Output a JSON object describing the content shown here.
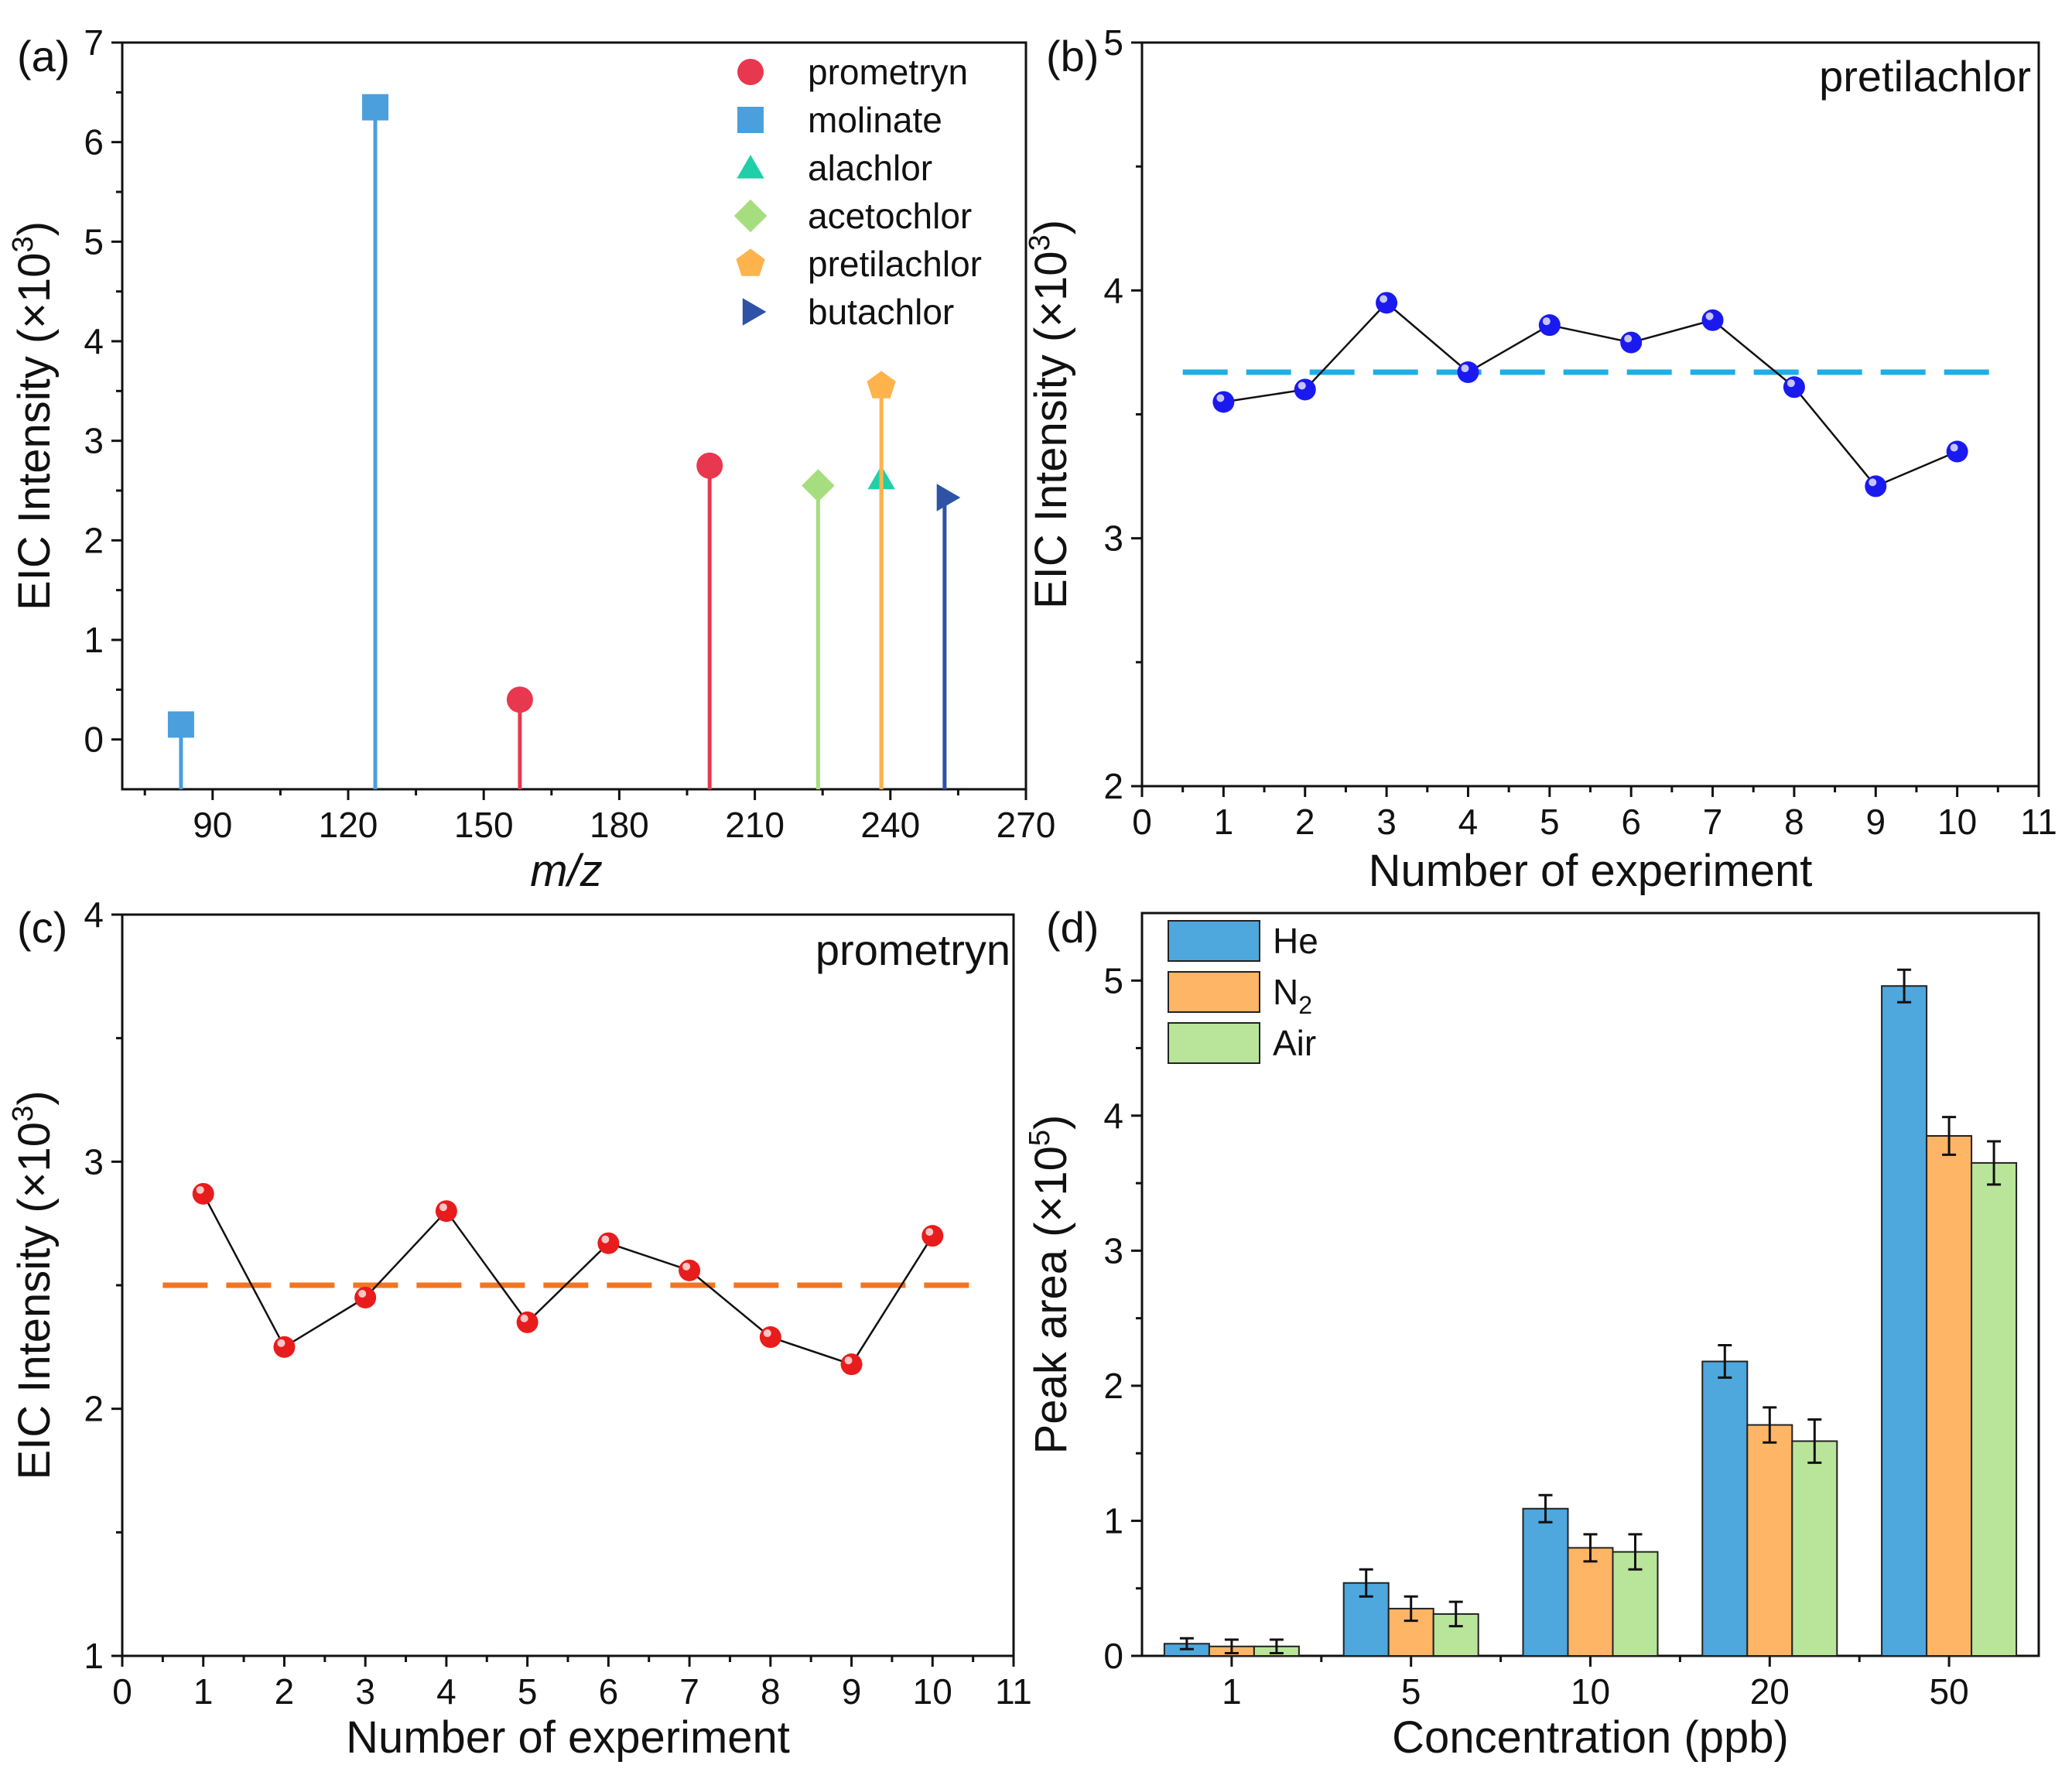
{
  "chart_data": [
    {
      "id": "a",
      "type": "stem",
      "panel_label": "(a)",
      "xlabel": "m/z",
      "ylabel": "EIC Intensity (×10³)",
      "ylabel_base": "EIC Intensity (×10",
      "ylabel_exp": "3",
      "xlim": [
        70,
        270
      ],
      "ylim": [
        -0.5,
        7
      ],
      "xticks": [
        90,
        120,
        150,
        180,
        210,
        240,
        270
      ],
      "yticks": [
        0,
        1,
        2,
        3,
        4,
        5,
        6,
        7
      ],
      "series": [
        {
          "name": "prometryn",
          "marker": "circle",
          "color": "#e8384f",
          "points": [
            {
              "x": 158,
              "y": 0.4
            },
            {
              "x": 200,
              "y": 2.75
            }
          ]
        },
        {
          "name": "molinate",
          "marker": "square",
          "color": "#4a9fdc",
          "points": [
            {
              "x": 83,
              "y": 0.15
            },
            {
              "x": 126,
              "y": 6.35
            }
          ]
        },
        {
          "name": "alachlor",
          "marker": "triangle",
          "color": "#1fcfa8",
          "points": [
            {
              "x": 238,
              "y": 2.62
            }
          ]
        },
        {
          "name": "acetochlor",
          "marker": "diamond",
          "color": "#a6de7f",
          "points": [
            {
              "x": 224,
              "y": 2.55
            }
          ]
        },
        {
          "name": "pretilachlor",
          "marker": "pentagon",
          "color": "#ffb34c",
          "points": [
            {
              "x": 238,
              "y": 3.55
            }
          ]
        },
        {
          "name": "butachlor",
          "marker": "triangle-right",
          "color": "#2d53a6",
          "points": [
            {
              "x": 252,
              "y": 2.43
            }
          ]
        }
      ]
    },
    {
      "id": "b",
      "type": "line",
      "panel_label": "(b)",
      "inner_label": "pretilachlor",
      "xlabel": "Number of experiment",
      "ylabel": "EIC Intensity (×10³)",
      "ylabel_base": "EIC Intensity (×10",
      "ylabel_exp": "3",
      "xlim": [
        0,
        11
      ],
      "ylim": [
        2,
        5
      ],
      "xticks": [
        0,
        1,
        2,
        3,
        4,
        5,
        6,
        7,
        8,
        9,
        10,
        11
      ],
      "yticks": [
        2,
        3,
        4,
        5
      ],
      "x": [
        1,
        2,
        3,
        4,
        5,
        6,
        7,
        8,
        9,
        10
      ],
      "y": [
        3.55,
        3.6,
        3.95,
        3.67,
        3.86,
        3.79,
        3.88,
        3.61,
        3.21,
        3.35
      ],
      "mean_line": 3.67,
      "marker_color": "#1a1af0",
      "mean_color": "#1eaee6"
    },
    {
      "id": "c",
      "type": "line",
      "panel_label": "(c)",
      "inner_label": "prometryn",
      "xlabel": "Number of experiment",
      "ylabel": "EIC Intensity (×10³)",
      "ylabel_base": "EIC Intensity (×10",
      "ylabel_exp": "3",
      "xlim": [
        0,
        11
      ],
      "ylim": [
        1,
        4
      ],
      "xticks": [
        0,
        1,
        2,
        3,
        4,
        5,
        6,
        7,
        8,
        9,
        10,
        11
      ],
      "yticks": [
        1,
        2,
        3,
        4
      ],
      "x": [
        1,
        2,
        3,
        4,
        5,
        6,
        7,
        8,
        9,
        10
      ],
      "y": [
        2.87,
        2.25,
        2.45,
        2.8,
        2.35,
        2.67,
        2.56,
        2.29,
        2.18,
        2.7
      ],
      "mean_line": 2.5,
      "marker_color": "#e81c1c",
      "mean_color": "#f27522"
    },
    {
      "id": "d",
      "type": "bar",
      "panel_label": "(d)",
      "xlabel": "Concentration (ppb)",
      "ylabel": "Peak area (×10⁵)",
      "ylabel_base": "Peak area (×10",
      "ylabel_exp": "5",
      "categories": [
        "1",
        "5",
        "10",
        "20",
        "50"
      ],
      "ylim": [
        0,
        5.5
      ],
      "yticks": [
        0,
        1,
        2,
        3,
        4,
        5
      ],
      "series": [
        {
          "name": "He",
          "name_base": "He",
          "name_sub": "",
          "color": "#4ea7dd",
          "values": [
            0.09,
            0.54,
            1.09,
            2.18,
            4.96
          ],
          "errors": [
            0.04,
            0.1,
            0.1,
            0.12,
            0.12
          ]
        },
        {
          "name": "N₂",
          "name_base": "N",
          "name_sub": "2",
          "color": "#ffb566",
          "values": [
            0.07,
            0.35,
            0.8,
            1.71,
            3.85
          ],
          "errors": [
            0.05,
            0.09,
            0.1,
            0.13,
            0.14
          ]
        },
        {
          "name": "Air",
          "name_base": "Air",
          "name_sub": "",
          "color": "#b9e59a",
          "values": [
            0.07,
            0.31,
            0.77,
            1.59,
            3.65
          ],
          "errors": [
            0.05,
            0.09,
            0.13,
            0.16,
            0.16
          ]
        }
      ]
    }
  ]
}
